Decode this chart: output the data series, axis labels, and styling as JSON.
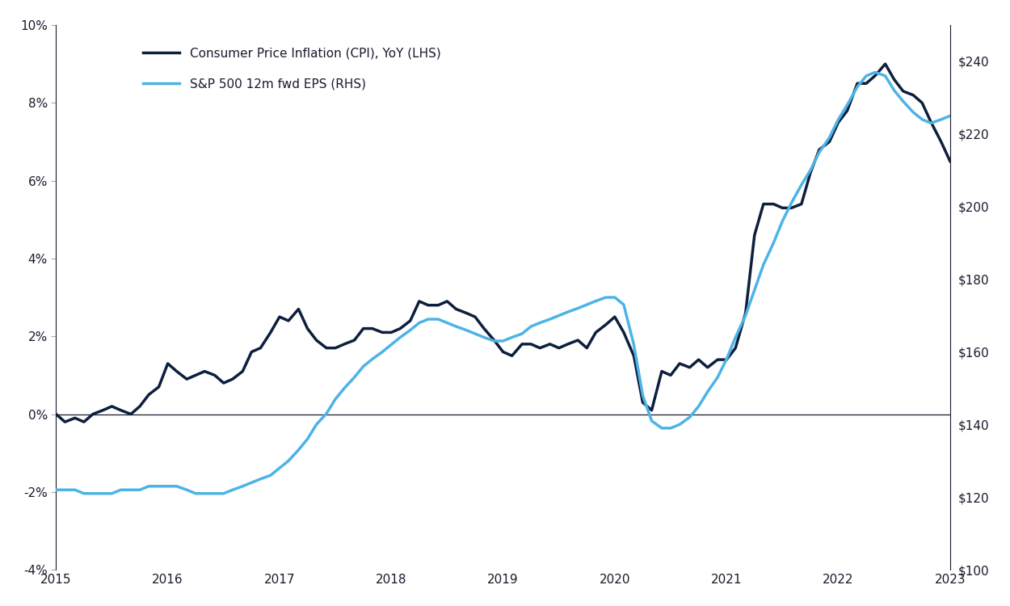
{
  "cpi_label": "Consumer Price Inflation (CPI), YoY (LHS)",
  "eps_label": "S&P 500 12m fwd EPS (RHS)",
  "cpi_color": "#0d1f3c",
  "eps_color": "#4db3e6",
  "background_color": "#ffffff",
  "ylim_left": [
    -0.04,
    0.1
  ],
  "ylim_right": [
    100,
    250
  ],
  "yticks_left": [
    -0.04,
    -0.02,
    0.0,
    0.02,
    0.04,
    0.06,
    0.08,
    0.1
  ],
  "yticks_right": [
    100,
    120,
    140,
    160,
    180,
    200,
    220,
    240
  ],
  "cpi_dates": [
    2015.0,
    2015.08,
    2015.17,
    2015.25,
    2015.33,
    2015.42,
    2015.5,
    2015.58,
    2015.67,
    2015.75,
    2015.83,
    2015.92,
    2016.0,
    2016.08,
    2016.17,
    2016.25,
    2016.33,
    2016.42,
    2016.5,
    2016.58,
    2016.67,
    2016.75,
    2016.83,
    2016.92,
    2017.0,
    2017.08,
    2017.17,
    2017.25,
    2017.33,
    2017.42,
    2017.5,
    2017.58,
    2017.67,
    2017.75,
    2017.83,
    2017.92,
    2018.0,
    2018.08,
    2018.17,
    2018.25,
    2018.33,
    2018.42,
    2018.5,
    2018.58,
    2018.67,
    2018.75,
    2018.83,
    2018.92,
    2019.0,
    2019.08,
    2019.17,
    2019.25,
    2019.33,
    2019.42,
    2019.5,
    2019.58,
    2019.67,
    2019.75,
    2019.83,
    2019.92,
    2020.0,
    2020.08,
    2020.17,
    2020.25,
    2020.33,
    2020.42,
    2020.5,
    2020.58,
    2020.67,
    2020.75,
    2020.83,
    2020.92,
    2021.0,
    2021.08,
    2021.17,
    2021.25,
    2021.33,
    2021.42,
    2021.5,
    2021.58,
    2021.67,
    2021.75,
    2021.83,
    2021.92,
    2022.0,
    2022.08,
    2022.17,
    2022.25,
    2022.33,
    2022.42,
    2022.5,
    2022.58,
    2022.67,
    2022.75,
    2022.83,
    2022.92,
    2023.0
  ],
  "cpi_values": [
    0.0,
    -0.002,
    -0.001,
    -0.002,
    0.0,
    0.001,
    0.002,
    0.001,
    0.0,
    0.002,
    0.005,
    0.007,
    0.013,
    0.011,
    0.009,
    0.01,
    0.011,
    0.01,
    0.008,
    0.009,
    0.011,
    0.016,
    0.017,
    0.021,
    0.025,
    0.024,
    0.027,
    0.022,
    0.019,
    0.017,
    0.017,
    0.018,
    0.019,
    0.022,
    0.022,
    0.021,
    0.021,
    0.022,
    0.024,
    0.029,
    0.028,
    0.028,
    0.029,
    0.027,
    0.026,
    0.025,
    0.022,
    0.019,
    0.016,
    0.015,
    0.018,
    0.018,
    0.017,
    0.018,
    0.017,
    0.018,
    0.019,
    0.017,
    0.021,
    0.023,
    0.025,
    0.021,
    0.015,
    0.003,
    0.001,
    0.011,
    0.01,
    0.013,
    0.012,
    0.014,
    0.012,
    0.014,
    0.014,
    0.017,
    0.026,
    0.046,
    0.054,
    0.054,
    0.053,
    0.053,
    0.054,
    0.062,
    0.068,
    0.07,
    0.075,
    0.078,
    0.085,
    0.085,
    0.087,
    0.09,
    0.086,
    0.083,
    0.082,
    0.08,
    0.075,
    0.07,
    0.065
  ],
  "eps_dates": [
    2015.0,
    2015.08,
    2015.17,
    2015.25,
    2015.33,
    2015.42,
    2015.5,
    2015.58,
    2015.67,
    2015.75,
    2015.83,
    2015.92,
    2016.0,
    2016.08,
    2016.17,
    2016.25,
    2016.33,
    2016.42,
    2016.5,
    2016.58,
    2016.67,
    2016.75,
    2016.83,
    2016.92,
    2017.0,
    2017.08,
    2017.17,
    2017.25,
    2017.33,
    2017.42,
    2017.5,
    2017.58,
    2017.67,
    2017.75,
    2017.83,
    2017.92,
    2018.0,
    2018.08,
    2018.17,
    2018.25,
    2018.33,
    2018.42,
    2018.5,
    2018.58,
    2018.67,
    2018.75,
    2018.83,
    2018.92,
    2019.0,
    2019.08,
    2019.17,
    2019.25,
    2019.33,
    2019.42,
    2019.5,
    2019.58,
    2019.67,
    2019.75,
    2019.83,
    2019.92,
    2020.0,
    2020.08,
    2020.17,
    2020.25,
    2020.33,
    2020.42,
    2020.5,
    2020.58,
    2020.67,
    2020.75,
    2020.83,
    2020.92,
    2021.0,
    2021.08,
    2021.17,
    2021.25,
    2021.33,
    2021.42,
    2021.5,
    2021.58,
    2021.67,
    2021.75,
    2021.83,
    2021.92,
    2022.0,
    2022.08,
    2022.17,
    2022.25,
    2022.33,
    2022.42,
    2022.5,
    2022.58,
    2022.67,
    2022.75,
    2022.83,
    2022.92,
    2023.0
  ],
  "eps_values": [
    122,
    122,
    122,
    121,
    121,
    121,
    121,
    122,
    122,
    122,
    123,
    123,
    123,
    123,
    122,
    121,
    121,
    121,
    121,
    122,
    123,
    124,
    125,
    126,
    128,
    130,
    133,
    136,
    140,
    143,
    147,
    150,
    153,
    156,
    158,
    160,
    162,
    164,
    166,
    168,
    169,
    169,
    168,
    167,
    166,
    165,
    164,
    163,
    163,
    164,
    165,
    167,
    168,
    169,
    170,
    171,
    172,
    173,
    174,
    175,
    175,
    173,
    162,
    148,
    141,
    139,
    139,
    140,
    142,
    145,
    149,
    153,
    158,
    164,
    170,
    177,
    184,
    190,
    196,
    201,
    206,
    210,
    215,
    219,
    224,
    228,
    233,
    236,
    237,
    236,
    232,
    229,
    226,
    224,
    223,
    224,
    225
  ],
  "xlim": [
    2015.0,
    2023.0
  ],
  "xticks": [
    2015,
    2016,
    2017,
    2018,
    2019,
    2020,
    2021,
    2022,
    2023
  ]
}
